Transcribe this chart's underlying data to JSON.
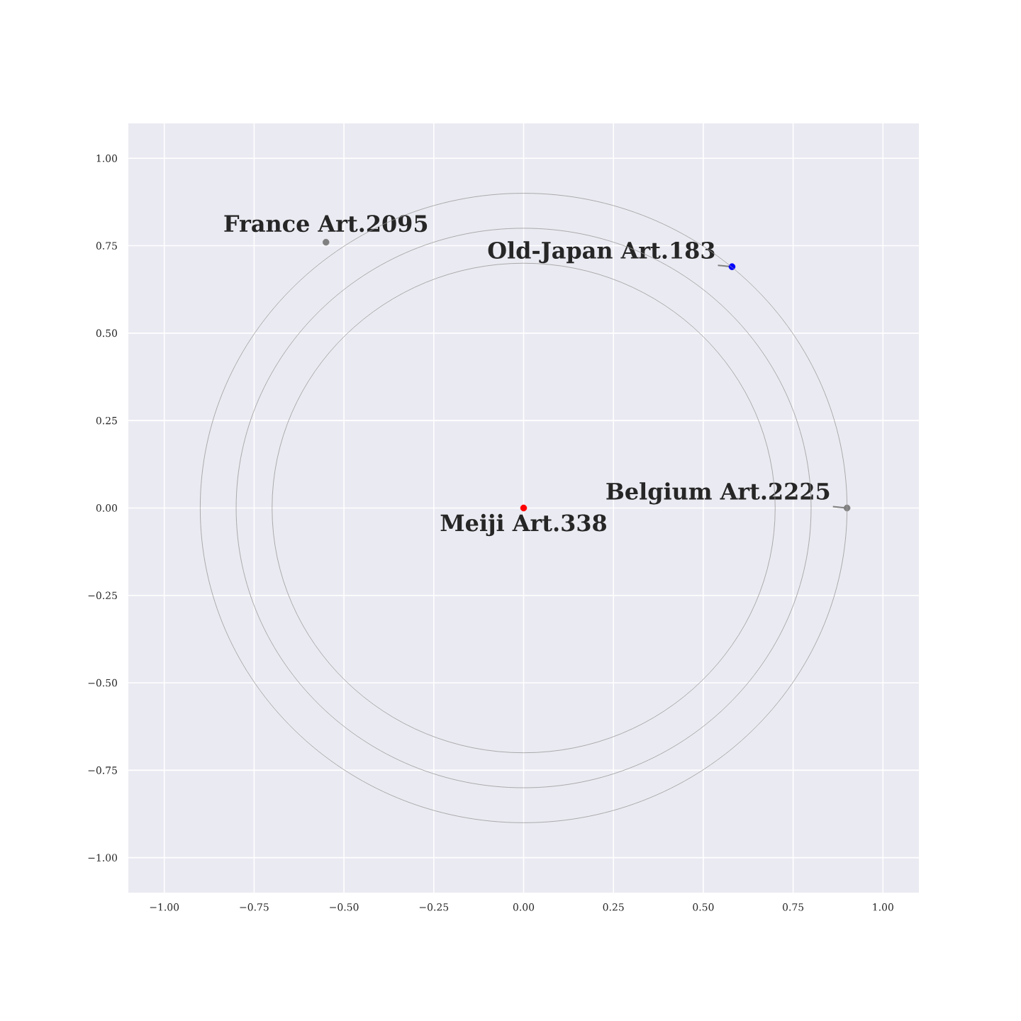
{
  "chart_data": {
    "type": "scatter",
    "xlim": [
      -1.1,
      1.1
    ],
    "ylim": [
      -1.1,
      1.1
    ],
    "xticks": [
      {
        "value": -1,
        "label": "−1.00"
      },
      {
        "value": -0.75,
        "label": "−0.75"
      },
      {
        "value": -0.5,
        "label": "−0.50"
      },
      {
        "value": -0.25,
        "label": "−0.25"
      },
      {
        "value": 0,
        "label": "0.00"
      },
      {
        "value": 0.25,
        "label": "0.25"
      },
      {
        "value": 0.5,
        "label": "0.50"
      },
      {
        "value": 0.75,
        "label": "0.75"
      },
      {
        "value": 1,
        "label": "1.00"
      }
    ],
    "yticks": [
      {
        "value": -1,
        "label": "−1.00"
      },
      {
        "value": -0.75,
        "label": "−0.75"
      },
      {
        "value": -0.5,
        "label": "−0.50"
      },
      {
        "value": -0.25,
        "label": "−0.25"
      },
      {
        "value": 0,
        "label": "0.00"
      },
      {
        "value": 0.25,
        "label": "0.25"
      },
      {
        "value": 0.5,
        "label": "0.50"
      },
      {
        "value": 0.75,
        "label": "0.75"
      },
      {
        "value": 1,
        "label": "1.00"
      }
    ],
    "grid": true,
    "series": [
      {
        "type": "scatter",
        "x": [
          0,
          -0.55,
          0.58,
          0.9
        ],
        "values": [
          0,
          0.76,
          0.69,
          0
        ],
        "colors": [
          "#ff0000",
          "#808080",
          "#0000ff",
          "#808080"
        ]
      }
    ],
    "annotations": [
      {
        "text": "Meiji Art.338",
        "x": 0,
        "y": 0
      },
      {
        "text": "France Art.2095",
        "x": -0.55,
        "y": 0.76
      },
      {
        "text": "Old-Japan Art.183",
        "x": 0.58,
        "y": 0.69
      },
      {
        "text": "Belgium Art.2225",
        "x": 0.9,
        "y": 0
      }
    ]
  }
}
